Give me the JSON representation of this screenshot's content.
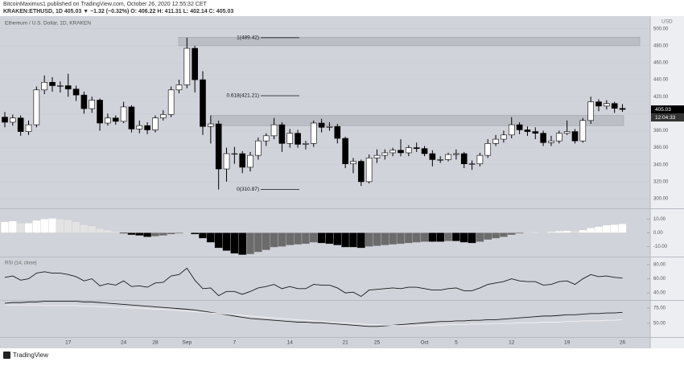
{
  "header": {
    "author_line": "BitcoinMaximus1 published on TradingView.com, October 26, 2020 12:55:32 CET",
    "symbol_line": "KRAKEN:ETHUSD, 1D  405.03 ▼ −1.32 (−0.32%)  O: 406.22  H: 411.31  L: 402.14  C: 405.03"
  },
  "chart_data": [
    {
      "type": "candlestick",
      "title": "Ethereum / U.S. Dollar, 1D, KRAKEN",
      "unit": "USD",
      "categories": [
        null,
        null,
        null,
        null,
        null,
        null,
        null,
        null,
        "17",
        null,
        null,
        null,
        null,
        null,
        null,
        "24",
        null,
        null,
        null,
        "28",
        null,
        null,
        null,
        "Sep",
        null,
        null,
        null,
        null,
        null,
        "7",
        null,
        null,
        null,
        null,
        null,
        null,
        "14",
        null,
        null,
        null,
        null,
        null,
        null,
        "21",
        null,
        null,
        null,
        "25",
        null,
        null,
        null,
        null,
        null,
        "Oct",
        null,
        null,
        null,
        "5",
        null,
        null,
        null,
        null,
        null,
        null,
        "12",
        null,
        null,
        null,
        null,
        null,
        null,
        "19",
        null,
        null,
        null,
        null,
        null,
        null,
        "26"
      ],
      "open": [
        396,
        390,
        395,
        379,
        387,
        428,
        437,
        433,
        433,
        429,
        422,
        406,
        416,
        389,
        395,
        391,
        408,
        382,
        386,
        381,
        395,
        399,
        428,
        434,
        477,
        440,
        385,
        388,
        335,
        353,
        353,
        337,
        351,
        368,
        374,
        387,
        365,
        377,
        364,
        365,
        389,
        384,
        385,
        371,
        341,
        344,
        320,
        348,
        351,
        354,
        357,
        354,
        360,
        359,
        353,
        346,
        346,
        352,
        353,
        341,
        341,
        351,
        365,
        370,
        375,
        387,
        381,
        379,
        377,
        366,
        368,
        377,
        379,
        368,
        392,
        414,
        409,
        412,
        406.22
      ],
      "high": [
        402,
        399,
        398,
        392,
        432,
        445,
        443,
        438,
        447,
        433,
        426,
        420,
        418,
        400,
        398,
        414,
        410,
        392,
        390,
        398,
        404,
        432,
        440,
        489.42,
        480,
        450,
        398,
        392,
        360,
        361,
        356,
        355,
        372,
        377,
        395,
        390,
        382,
        381,
        368,
        392,
        394,
        390,
        388,
        373,
        348,
        346,
        352,
        358,
        358,
        360,
        370,
        363,
        366,
        362,
        357,
        350,
        354,
        358,
        355,
        345,
        354,
        370,
        375,
        380,
        396,
        390,
        385,
        384,
        380,
        374,
        380,
        392,
        382,
        395,
        420,
        417,
        416,
        414,
        411.31
      ],
      "low": [
        384,
        386,
        374,
        375,
        384,
        423,
        426,
        425,
        420,
        415,
        400,
        401,
        380,
        386,
        387,
        389,
        378,
        377,
        376,
        378,
        392,
        396,
        424,
        430,
        425,
        375,
        365,
        310.87,
        320,
        341,
        330,
        332,
        346,
        362,
        370,
        355,
        360,
        360,
        358,
        361,
        378,
        380,
        365,
        336,
        330,
        315,
        318,
        342,
        346,
        350,
        350,
        350,
        355,
        350,
        338,
        342,
        344,
        346,
        336,
        334,
        338,
        348,
        362,
        366,
        371,
        376,
        374,
        370,
        362,
        362,
        365,
        375,
        365,
        366,
        388,
        403,
        405,
        401,
        402.14
      ],
      "close": [
        390,
        395,
        379,
        387,
        428,
        437,
        433,
        433,
        429,
        422,
        406,
        416,
        389,
        395,
        391,
        408,
        382,
        386,
        381,
        395,
        399,
        428,
        434,
        477,
        440,
        385,
        388,
        335,
        353,
        353,
        337,
        351,
        368,
        374,
        387,
        365,
        377,
        364,
        365,
        389,
        384,
        385,
        371,
        341,
        344,
        320,
        348,
        351,
        354,
        357,
        354,
        360,
        359,
        353,
        346,
        346,
        352,
        353,
        341,
        341,
        351,
        365,
        370,
        375,
        387,
        381,
        379,
        377,
        366,
        368,
        377,
        379,
        368,
        392,
        414,
        409,
        412,
        406.35,
        405.03
      ],
      "up_color": "#ffffff",
      "down_color": "#000000",
      "grid": true,
      "ylim": [
        289.6,
        513
      ],
      "yticks": [
        {
          "value": 300,
          "label": "300.00"
        },
        {
          "value": 320,
          "label": "320.00"
        },
        {
          "value": 340,
          "label": "340.00"
        },
        {
          "value": 360,
          "label": "360.00"
        },
        {
          "value": 380,
          "label": "380.00"
        },
        {
          "value": 400,
          "label": "400.00"
        },
        {
          "value": 420,
          "label": "420.00"
        },
        {
          "value": 440,
          "label": "440.00"
        },
        {
          "value": 460,
          "label": "460.00"
        },
        {
          "value": 480,
          "label": "480.00"
        },
        {
          "value": 500,
          "label": "500.00"
        }
      ],
      "fib": [
        {
          "value": 489.42,
          "label": "1(489.42)"
        },
        {
          "value": 421.21,
          "label": "0.618(421.21)"
        },
        {
          "value": 310.87,
          "label": "0(310.87)"
        }
      ],
      "zones": [
        {
          "low": 480,
          "high": 490
        },
        {
          "low": 386,
          "high": 398
        }
      ],
      "countdown": "12:04:33"
    },
    {
      "type": "histogram",
      "values": [
        8,
        8.5,
        7,
        7,
        9,
        10,
        10.5,
        10,
        9.5,
        8,
        6,
        5,
        3,
        2,
        1,
        -0.5,
        -1.5,
        -2,
        -3,
        -2.5,
        -2,
        -1,
        -0.5,
        0.3,
        -1,
        -4,
        -7,
        -11,
        -13,
        -15,
        -16,
        -15.5,
        -14,
        -12.5,
        -10.5,
        -10,
        -9,
        -8.5,
        -8,
        -7,
        -7.5,
        -8,
        -9,
        -10.5,
        -10.5,
        -11,
        -10,
        -9.5,
        -9,
        -8.5,
        -8,
        -7.5,
        -7,
        -6.5,
        -6.5,
        -6.5,
        -6,
        -6,
        -7,
        -7.5,
        -6.5,
        -5,
        -4,
        -3,
        -1.5,
        -0.5,
        0.3,
        0.5,
        0.4,
        0.8,
        1.2,
        1.5,
        1.3,
        2,
        3.5,
        4.5,
        5.5,
        6,
        6.5
      ],
      "colors": {
        "grow_above": "#ffffff",
        "fall_above": "#e3e3e3",
        "grow_below": "#000000",
        "fall_below": "#6b6b6b"
      },
      "ylim": [
        -16.7,
        16
      ],
      "yticks": [
        {
          "value": 10,
          "label": "10.00"
        },
        {
          "value": 0,
          "label": "0.00"
        },
        {
          "value": -10,
          "label": "-10.00"
        }
      ]
    },
    {
      "type": "line",
      "title": "RSI (14, close)",
      "series": [
        {
          "color": "#1a1a1a",
          "values": [
            62,
            64,
            58,
            60,
            68,
            70,
            68,
            68,
            66,
            63,
            57,
            60,
            50,
            53,
            51,
            57,
            49,
            50,
            48,
            54,
            55,
            64,
            66,
            75,
            58,
            46,
            47,
            36,
            42,
            42,
            38,
            42,
            47,
            49,
            52,
            46,
            49,
            46,
            46,
            52,
            51,
            51,
            47,
            40,
            41,
            35,
            44,
            45,
            46,
            47,
            46,
            48,
            48,
            46,
            44,
            44,
            46,
            47,
            43,
            43,
            47,
            52,
            54,
            56,
            60,
            57,
            56,
            56,
            51,
            52,
            56,
            57,
            52,
            60,
            66,
            63,
            64,
            62,
            61
          ]
        }
      ],
      "ylim": [
        31,
        88
      ],
      "yticks": [
        {
          "value": 80,
          "label": "80.00"
        },
        {
          "value": 60,
          "label": "60.00"
        },
        {
          "value": 40,
          "label": "40.00"
        }
      ]
    },
    {
      "type": "line",
      "series": [
        {
          "color": "#1a1a1a",
          "values": [
            83,
            84,
            84,
            85,
            85,
            86,
            86,
            86,
            86,
            86,
            85,
            85,
            84,
            83,
            82,
            81,
            80,
            79,
            78,
            77,
            76,
            75,
            74,
            73,
            72,
            70,
            68,
            66,
            64,
            62,
            60,
            58,
            57,
            56,
            55,
            54,
            53,
            52,
            52,
            51,
            51,
            50,
            49,
            48,
            47,
            46,
            45,
            45,
            46,
            47,
            48,
            49,
            50,
            51,
            52,
            53,
            53,
            54,
            54,
            55,
            55,
            56,
            56,
            57,
            58,
            59,
            60,
            61,
            62,
            62,
            63,
            64,
            64,
            65,
            66,
            66,
            67,
            67,
            68
          ]
        },
        {
          "color": "#f2f2f2",
          "values": [
            80,
            80,
            80,
            80,
            80,
            79,
            79,
            79,
            79,
            79,
            78,
            78,
            77,
            77,
            76,
            76,
            75,
            75,
            74,
            73,
            73,
            72,
            71,
            70,
            69,
            68,
            67,
            66,
            65,
            64,
            63,
            62,
            61,
            60,
            59,
            58,
            57,
            56,
            55,
            54,
            53,
            52,
            51,
            51,
            50,
            49,
            48,
            48,
            47,
            47,
            46,
            46,
            46,
            47,
            47,
            47,
            48,
            48,
            48,
            49,
            49,
            49,
            50,
            50,
            50,
            51,
            51,
            51,
            52,
            52,
            52,
            53,
            53,
            54,
            54,
            54,
            55,
            55,
            56
          ]
        }
      ],
      "ylim": [
        29,
        86.8
      ],
      "yticks": [
        {
          "value": 75,
          "label": "75.00"
        },
        {
          "value": 50,
          "label": "50.00"
        }
      ]
    }
  ],
  "footer": {
    "brand": "TradingView"
  }
}
